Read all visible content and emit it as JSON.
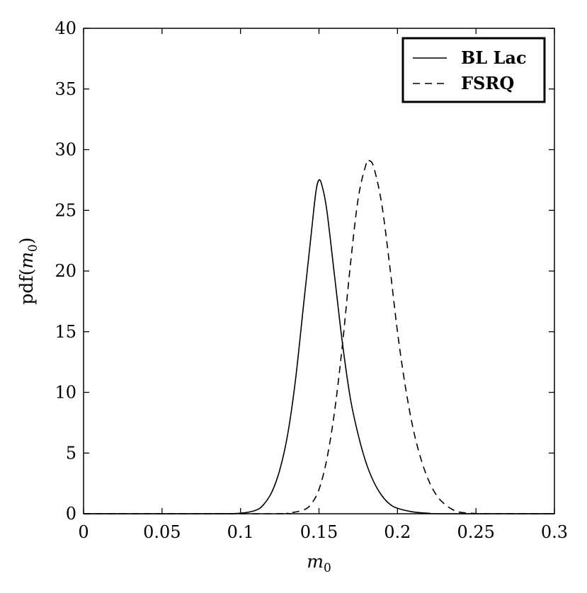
{
  "chart_data": {
    "type": "line",
    "xlabel": {
      "base": "m",
      "sub": "0"
    },
    "ylabel": {
      "pre": "pdf(",
      "var": "m",
      "sub": "0",
      "post": ")"
    },
    "xlim": [
      0,
      0.3
    ],
    "ylim": [
      0,
      40
    ],
    "xticks": [
      0,
      0.05,
      0.1,
      0.15,
      0.2,
      0.25,
      0.3
    ],
    "xtick_labels": [
      "0",
      "0.05",
      "0.1",
      "0.15",
      "0.2",
      "0.25",
      "0.3"
    ],
    "yticks": [
      0,
      5,
      10,
      15,
      20,
      25,
      30,
      35,
      40
    ],
    "ytick_labels": [
      "0",
      "5",
      "10",
      "15",
      "20",
      "25",
      "30",
      "35",
      "40"
    ],
    "grid": false,
    "legend": {
      "position": "top-right"
    },
    "series": [
      {
        "name": "BL Lac",
        "style": "solid",
        "color": "#000000",
        "points": [
          [
            0.0,
            0
          ],
          [
            0.08,
            0
          ],
          [
            0.1,
            0.05
          ],
          [
            0.11,
            0.3
          ],
          [
            0.115,
            0.8
          ],
          [
            0.12,
            1.8
          ],
          [
            0.125,
            3.6
          ],
          [
            0.13,
            6.5
          ],
          [
            0.135,
            11.0
          ],
          [
            0.14,
            17.0
          ],
          [
            0.145,
            23.0
          ],
          [
            0.148,
            26.5
          ],
          [
            0.15,
            27.5
          ],
          [
            0.152,
            27.0
          ],
          [
            0.155,
            25.0
          ],
          [
            0.16,
            19.5
          ],
          [
            0.165,
            14.0
          ],
          [
            0.17,
            9.5
          ],
          [
            0.175,
            6.5
          ],
          [
            0.18,
            4.2
          ],
          [
            0.185,
            2.6
          ],
          [
            0.19,
            1.5
          ],
          [
            0.195,
            0.8
          ],
          [
            0.2,
            0.45
          ],
          [
            0.21,
            0.15
          ],
          [
            0.22,
            0.04
          ],
          [
            0.23,
            0
          ],
          [
            0.3,
            0
          ]
        ]
      },
      {
        "name": "FSRQ",
        "style": "dashed",
        "color": "#000000",
        "points": [
          [
            0.0,
            0
          ],
          [
            0.12,
            0
          ],
          [
            0.13,
            0.05
          ],
          [
            0.14,
            0.3
          ],
          [
            0.145,
            0.8
          ],
          [
            0.15,
            2.0
          ],
          [
            0.155,
            4.5
          ],
          [
            0.16,
            8.5
          ],
          [
            0.165,
            14.0
          ],
          [
            0.17,
            20.5
          ],
          [
            0.175,
            26.0
          ],
          [
            0.18,
            28.8
          ],
          [
            0.182,
            29.1
          ],
          [
            0.185,
            28.5
          ],
          [
            0.19,
            25.5
          ],
          [
            0.195,
            20.5
          ],
          [
            0.2,
            15.0
          ],
          [
            0.205,
            10.5
          ],
          [
            0.21,
            7.0
          ],
          [
            0.215,
            4.5
          ],
          [
            0.22,
            2.7
          ],
          [
            0.225,
            1.5
          ],
          [
            0.23,
            0.8
          ],
          [
            0.235,
            0.35
          ],
          [
            0.24,
            0.12
          ],
          [
            0.25,
            0.02
          ],
          [
            0.26,
            0
          ],
          [
            0.3,
            0
          ]
        ]
      }
    ]
  }
}
